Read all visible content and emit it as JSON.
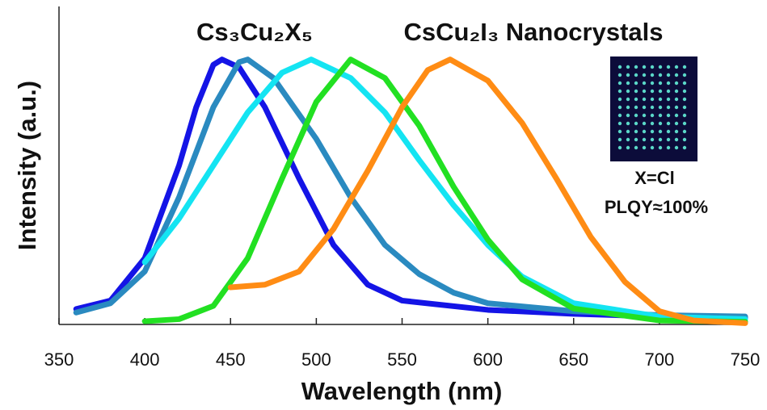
{
  "chart_data": {
    "type": "line",
    "annotations": [
      "Cs₃Cu₂X₅",
      "CsCu₂I₃ Nanocrystals",
      "X=Cl",
      "PLQY≈100%"
    ],
    "xlabel": "Wavelength (nm)",
    "ylabel": "Intensity (a.u.)",
    "xlim": [
      350,
      750
    ],
    "xticks": [
      350,
      400,
      450,
      500,
      550,
      600,
      650,
      700,
      750
    ],
    "ylim": [
      0,
      1.2
    ],
    "grid": false,
    "series": [
      {
        "color": "#1414e6",
        "x": [
          360,
          380,
          400,
          420,
          430,
          440,
          445,
          455,
          470,
          490,
          510,
          530,
          550,
          600,
          650,
          700,
          750
        ],
        "values": [
          0.058,
          0.09,
          0.25,
          0.6,
          0.82,
          0.98,
          1.0,
          0.97,
          0.82,
          0.55,
          0.3,
          0.15,
          0.09,
          0.055,
          0.04,
          0.03,
          0.025
        ]
      },
      {
        "color": "#2a8ac0",
        "x": [
          360,
          380,
          400,
          420,
          440,
          455,
          460,
          475,
          500,
          520,
          540,
          560,
          580,
          600,
          650,
          700,
          750
        ],
        "values": [
          0.045,
          0.08,
          0.2,
          0.48,
          0.82,
          0.99,
          1.0,
          0.93,
          0.7,
          0.48,
          0.3,
          0.19,
          0.12,
          0.08,
          0.05,
          0.035,
          0.03
        ]
      },
      {
        "color": "#14e4f2",
        "x": [
          400,
          420,
          440,
          460,
          480,
          497,
          520,
          540,
          560,
          580,
          600,
          620,
          650,
          700,
          750
        ],
        "values": [
          0.235,
          0.4,
          0.6,
          0.8,
          0.95,
          1.0,
          0.93,
          0.8,
          0.62,
          0.45,
          0.3,
          0.18,
          0.08,
          0.03,
          0.02
        ]
      },
      {
        "color": "#22e022",
        "x": [
          400,
          420,
          440,
          460,
          480,
          500,
          520,
          540,
          560,
          580,
          600,
          620,
          650,
          700,
          750
        ],
        "values": [
          0.012,
          0.02,
          0.07,
          0.25,
          0.55,
          0.84,
          1.0,
          0.93,
          0.75,
          0.52,
          0.32,
          0.17,
          0.06,
          0.015,
          0.01
        ]
      },
      {
        "color": "#ff8c14",
        "x": [
          450,
          470,
          490,
          510,
          530,
          550,
          565,
          578,
          600,
          620,
          640,
          660,
          680,
          700,
          720,
          750
        ],
        "values": [
          0.14,
          0.15,
          0.2,
          0.36,
          0.58,
          0.82,
          0.96,
          1.0,
          0.92,
          0.76,
          0.55,
          0.33,
          0.16,
          0.05,
          0.015,
          0.005
        ]
      }
    ]
  }
}
